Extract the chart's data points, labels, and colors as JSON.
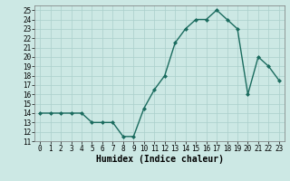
{
  "x": [
    0,
    1,
    2,
    3,
    4,
    5,
    6,
    7,
    8,
    9,
    10,
    11,
    12,
    13,
    14,
    15,
    16,
    17,
    18,
    19,
    20,
    21,
    22,
    23
  ],
  "y": [
    14,
    14,
    14,
    14,
    14,
    13,
    13,
    13,
    11.5,
    11.5,
    14.5,
    16.5,
    18,
    21.5,
    23,
    24,
    24,
    25,
    24,
    23,
    16,
    20,
    19,
    17.5
  ],
  "line_color": "#1a6b5e",
  "marker": "D",
  "marker_size": 2,
  "xlabel": "Humidex (Indice chaleur)",
  "xlim": [
    -0.5,
    23.5
  ],
  "ylim": [
    11,
    25.5
  ],
  "yticks": [
    11,
    12,
    13,
    14,
    15,
    16,
    17,
    18,
    19,
    20,
    21,
    22,
    23,
    24,
    25
  ],
  "xticks": [
    0,
    1,
    2,
    3,
    4,
    5,
    6,
    7,
    8,
    9,
    10,
    11,
    12,
    13,
    14,
    15,
    16,
    17,
    18,
    19,
    20,
    21,
    22,
    23
  ],
  "bg_color": "#cce8e4",
  "grid_color": "#aacfcb",
  "tick_fontsize": 5.5,
  "xlabel_fontsize": 7,
  "linewidth": 1.0
}
